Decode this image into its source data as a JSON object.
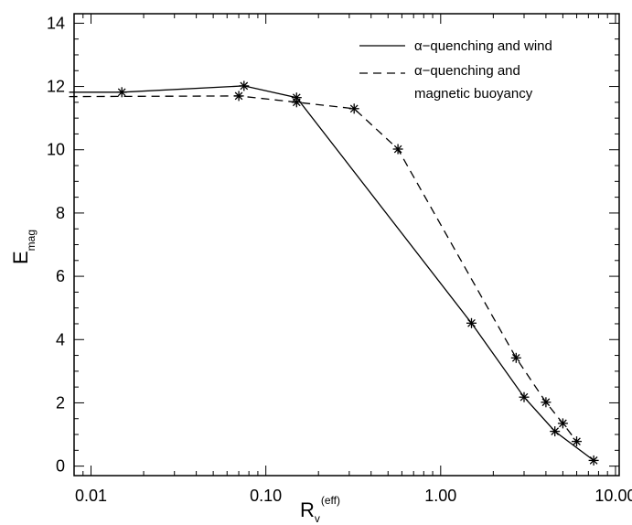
{
  "chart_data": {
    "type": "line",
    "x_scale": "log",
    "xlim": [
      0.008,
      10.5
    ],
    "ylim": [
      -0.3,
      14.3
    ],
    "x_ticks": [
      0.01,
      0.1,
      1.0,
      10.0
    ],
    "x_tick_labels": [
      "0.01",
      "0.10",
      "1.00",
      "10.00"
    ],
    "y_ticks": [
      0,
      2,
      4,
      6,
      8,
      10,
      12,
      14
    ],
    "y_tick_labels": [
      "0",
      "2",
      "4",
      "6",
      "8",
      "10",
      "12",
      "14"
    ],
    "xlabel": {
      "main": "R",
      "sub": "v",
      "sup": "(eff)"
    },
    "ylabel": {
      "main": "E",
      "sub": "mag"
    },
    "legend_position": "top-right",
    "marker": "asterisk",
    "series": [
      {
        "name": "α−quenching and wind",
        "line_style": "solid",
        "x": [
          0.0075,
          0.015,
          0.075,
          0.15,
          1.5,
          3.0,
          4.5,
          7.5
        ],
        "y": [
          11.82,
          11.82,
          12.02,
          11.65,
          4.52,
          2.18,
          1.1,
          0.18
        ]
      },
      {
        "name_lines": [
          "α−quenching and",
          "magnetic buoyancy"
        ],
        "line_style": "dashed",
        "x": [
          0.0075,
          0.07,
          0.15,
          0.32,
          0.57,
          2.7,
          4.0,
          5.0,
          6.0
        ],
        "y": [
          11.68,
          11.7,
          11.5,
          11.3,
          10.02,
          3.42,
          2.02,
          1.35,
          0.78
        ]
      }
    ]
  }
}
